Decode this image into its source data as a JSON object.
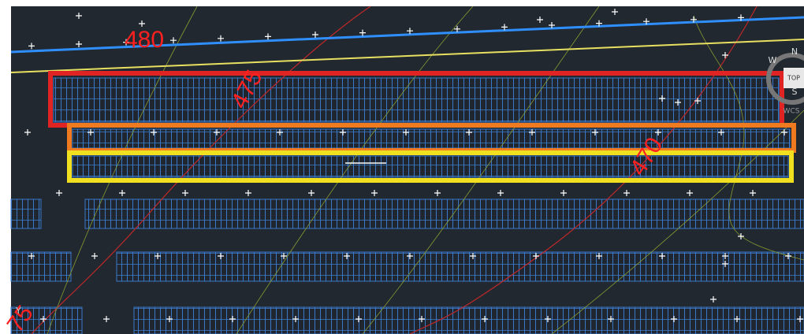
{
  "contour_labels": [
    "480",
    "475",
    "470",
    "75"
  ],
  "viewcube": {
    "north": "N",
    "west": "W",
    "south": "S",
    "face": "TOP",
    "ucs": "WCS"
  },
  "ucs_axis": "Y"
}
